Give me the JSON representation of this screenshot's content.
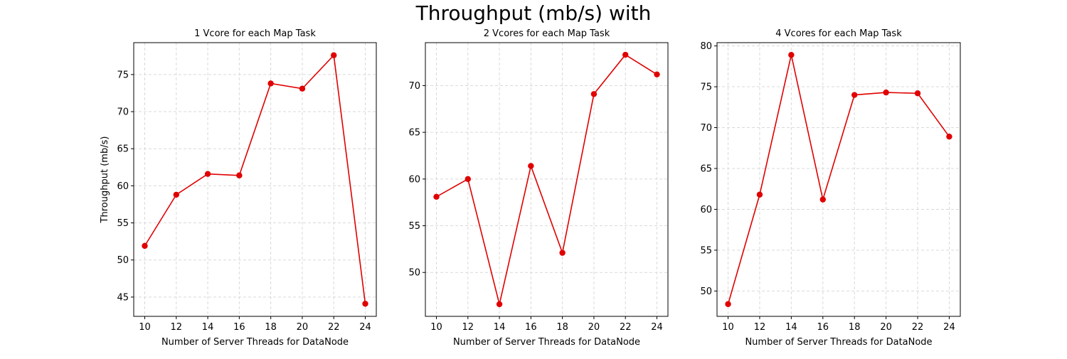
{
  "figure": {
    "title": "Throughput (mb/s) with"
  },
  "chart_data": [
    {
      "type": "line",
      "title": "1 Vcore for each Map Task",
      "xlabel": "Number of Server Threads for DataNode",
      "ylabel": "Throughput (mb/s)",
      "x": [
        10,
        12,
        14,
        16,
        18,
        20,
        22,
        24
      ],
      "series": [
        {
          "values": [
            51.9,
            58.8,
            61.6,
            61.4,
            73.8,
            73.1,
            77.6,
            44.1
          ],
          "color": "#e00000"
        }
      ],
      "xlim": [
        9.3,
        24.7
      ],
      "ylim": [
        42.4,
        79.3
      ],
      "xticks": [
        10,
        12,
        14,
        16,
        18,
        20,
        22,
        24
      ],
      "yticks": [
        45,
        50,
        55,
        60,
        65,
        70,
        75
      ],
      "grid": true
    },
    {
      "type": "line",
      "title": "2 Vcores for each Map Task",
      "xlabel": "Number of Server Threads for DataNode",
      "ylabel": "",
      "x": [
        10,
        12,
        14,
        16,
        18,
        20,
        22,
        24
      ],
      "series": [
        {
          "values": [
            58.1,
            60.0,
            46.6,
            61.4,
            52.1,
            69.1,
            73.3,
            71.2
          ],
          "color": "#e00000"
        }
      ],
      "xlim": [
        9.3,
        24.7
      ],
      "ylim": [
        45.3,
        74.6
      ],
      "xticks": [
        10,
        12,
        14,
        16,
        18,
        20,
        22,
        24
      ],
      "yticks": [
        50,
        55,
        60,
        65,
        70
      ],
      "grid": true
    },
    {
      "type": "line",
      "title": "4 Vcores for each Map Task",
      "xlabel": "Number of Server Threads for DataNode",
      "ylabel": "",
      "x": [
        10,
        12,
        14,
        16,
        18,
        20,
        22,
        24
      ],
      "series": [
        {
          "values": [
            48.4,
            61.8,
            78.9,
            61.2,
            74.0,
            74.3,
            74.2,
            68.9
          ],
          "color": "#e00000"
        }
      ],
      "xlim": [
        9.3,
        24.7
      ],
      "ylim": [
        46.9,
        80.4
      ],
      "xticks": [
        10,
        12,
        14,
        16,
        18,
        20,
        22,
        24
      ],
      "yticks": [
        50,
        55,
        60,
        65,
        70,
        75,
        80
      ],
      "grid": true
    }
  ]
}
